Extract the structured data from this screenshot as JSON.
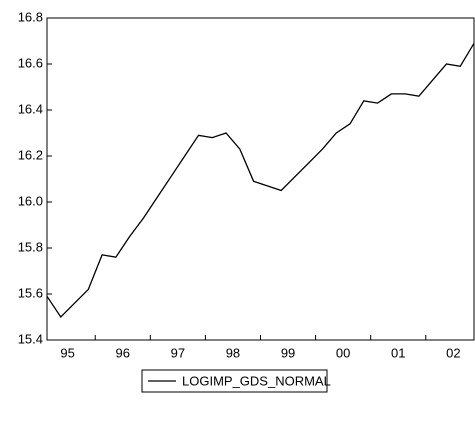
{
  "chart_data": {
    "type": "line",
    "categories": [
      "95",
      null,
      null,
      null,
      "96",
      null,
      null,
      null,
      "97",
      null,
      null,
      null,
      "98",
      null,
      null,
      null,
      "99",
      null,
      null,
      null,
      "00",
      null,
      null,
      null,
      "01",
      null,
      null,
      null,
      "02",
      null,
      null,
      null
    ],
    "series": [
      {
        "name": "LOGIMP_GDS_NORMAL",
        "color": "#000000",
        "values": [
          15.59,
          15.5,
          15.56,
          15.62,
          15.77,
          15.76,
          15.85,
          15.93,
          16.02,
          16.11,
          16.2,
          16.29,
          16.28,
          16.3,
          16.23,
          16.09,
          16.07,
          16.05,
          16.11,
          16.17,
          16.23,
          16.3,
          16.34,
          16.44,
          16.43,
          16.47,
          16.47,
          16.46,
          16.53,
          16.6,
          16.59,
          16.69
        ]
      }
    ],
    "ylim": [
      15.4,
      16.8
    ],
    "yticks": [
      15.4,
      15.6,
      15.8,
      {
        "value": 16,
        "label": "16.0"
      },
      16.2,
      16.4,
      16.6,
      16.8
    ],
    "legend": "bottom"
  }
}
